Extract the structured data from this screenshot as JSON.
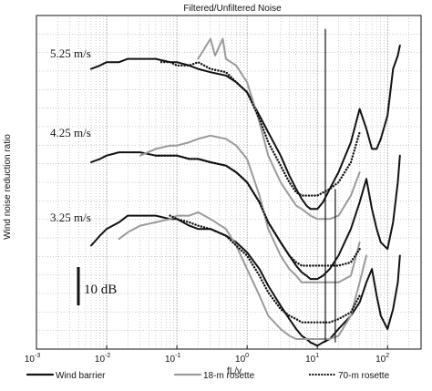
{
  "chart_data": {
    "type": "line",
    "title": "Filtered/Unfiltered Noise",
    "xlabel": "fL/v",
    "ylabel": "Wind noise reduction ratio",
    "xscale": "log",
    "xlim": [
      0.001,
      300
    ],
    "x_ticks": [
      {
        "value": 0.001,
        "base": "10",
        "exp": "-3"
      },
      {
        "value": 0.01,
        "base": "10",
        "exp": "-2"
      },
      {
        "value": 0.1,
        "base": "10",
        "exp": "-1"
      },
      {
        "value": 1,
        "base": "10",
        "exp": "0"
      },
      {
        "value": 10,
        "base": "10",
        "exp": "1"
      },
      {
        "value": 100,
        "base": "10",
        "exp": "2"
      }
    ],
    "ylim": [
      0,
      100
    ],
    "yunits": "relative chart scale, 10 dB ≈ 11 units",
    "grid": true,
    "legend_position": "bottom",
    "scale_bar": {
      "label": "10 dB"
    },
    "groups": [
      {
        "label": "5.25 m/s",
        "series": [
          {
            "name": "Wind barrier",
            "points": [
              [
                0.006,
                84
              ],
              [
                0.008,
                85
              ],
              [
                0.01,
                86
              ],
              [
                0.015,
                86
              ],
              [
                0.02,
                87
              ],
              [
                0.03,
                87
              ],
              [
                0.05,
                87
              ],
              [
                0.08,
                86
              ],
              [
                0.1,
                86
              ],
              [
                0.15,
                85
              ],
              [
                0.2,
                84
              ],
              [
                0.3,
                83
              ],
              [
                0.5,
                82
              ],
              [
                0.7,
                80
              ],
              [
                1,
                77
              ],
              [
                1.5,
                70
              ],
              [
                2,
                65
              ],
              [
                3,
                58
              ],
              [
                4,
                52
              ],
              [
                5,
                48
              ],
              [
                6,
                45
              ],
              [
                7,
                43
              ],
              [
                8,
                42
              ],
              [
                10,
                42
              ],
              [
                12,
                44
              ],
              [
                15,
                48
              ],
              [
                20,
                53
              ],
              [
                30,
                62
              ],
              [
                40,
                72
              ],
              [
                50,
                66
              ],
              [
                60,
                60
              ],
              [
                70,
                60
              ],
              [
                80,
                63
              ],
              [
                100,
                70
              ],
              [
                120,
                84
              ],
              [
                140,
                88
              ],
              [
                150,
                91
              ]
            ]
          },
          {
            "name": "18-m rosette",
            "points": [
              [
                0.2,
                87
              ],
              [
                0.3,
                93
              ],
              [
                0.35,
                88
              ],
              [
                0.45,
                93
              ],
              [
                0.5,
                87
              ],
              [
                0.7,
                85
              ],
              [
                1,
                80
              ],
              [
                1.5,
                68
              ],
              [
                2,
                58
              ],
              [
                3,
                50
              ],
              [
                4,
                46
              ],
              [
                5,
                43
              ],
              [
                6,
                42
              ],
              [
                8,
                40
              ],
              [
                10,
                39
              ],
              [
                15,
                39
              ],
              [
                20,
                40
              ],
              [
                30,
                46
              ],
              [
                40,
                53
              ]
            ]
          },
          {
            "name": "70-m rosette",
            "points": [
              [
                0.06,
                86
              ],
              [
                0.08,
                86
              ],
              [
                0.1,
                85
              ],
              [
                0.15,
                85
              ],
              [
                0.2,
                86
              ],
              [
                0.3,
                84
              ],
              [
                0.5,
                83
              ],
              [
                0.7,
                80
              ],
              [
                1,
                77
              ],
              [
                1.5,
                69
              ],
              [
                2,
                62
              ],
              [
                3,
                55
              ],
              [
                4,
                50
              ],
              [
                5,
                47
              ],
              [
                6,
                46
              ],
              [
                8,
                46
              ],
              [
                10,
                46
              ],
              [
                15,
                48
              ],
              [
                20,
                50
              ],
              [
                30,
                56
              ],
              [
                40,
                65
              ]
            ]
          }
        ]
      },
      {
        "label": "4.25 m/s",
        "series": [
          {
            "name": "Wind barrier",
            "points": [
              [
                0.006,
                56
              ],
              [
                0.008,
                57
              ],
              [
                0.01,
                58
              ],
              [
                0.015,
                59
              ],
              [
                0.02,
                59
              ],
              [
                0.03,
                59
              ],
              [
                0.05,
                58
              ],
              [
                0.08,
                58
              ],
              [
                0.1,
                58
              ],
              [
                0.15,
                57
              ],
              [
                0.2,
                57
              ],
              [
                0.3,
                56
              ],
              [
                0.5,
                55
              ],
              [
                0.7,
                53
              ],
              [
                1,
                50
              ],
              [
                1.5,
                44
              ],
              [
                2,
                38
              ],
              [
                3,
                32
              ],
              [
                4,
                28
              ],
              [
                5,
                25
              ],
              [
                6,
                23
              ],
              [
                7,
                22
              ],
              [
                8,
                21
              ],
              [
                10,
                21
              ],
              [
                12,
                22
              ],
              [
                15,
                24
              ],
              [
                20,
                28
              ],
              [
                30,
                36
              ],
              [
                40,
                44
              ],
              [
                50,
                51
              ],
              [
                60,
                42
              ],
              [
                70,
                36
              ],
              [
                80,
                32
              ],
              [
                100,
                30
              ],
              [
                120,
                38
              ],
              [
                140,
                50
              ],
              [
                150,
                58
              ]
            ]
          },
          {
            "name": "18-m rosette",
            "points": [
              [
                0.03,
                58
              ],
              [
                0.05,
                60
              ],
              [
                0.08,
                61
              ],
              [
                0.1,
                61
              ],
              [
                0.15,
                62
              ],
              [
                0.2,
                63
              ],
              [
                0.3,
                64
              ],
              [
                0.5,
                63
              ],
              [
                0.7,
                61
              ],
              [
                1,
                57
              ],
              [
                1.5,
                46
              ],
              [
                2,
                36
              ],
              [
                3,
                28
              ],
              [
                4,
                24
              ],
              [
                5,
                22
              ],
              [
                6,
                20
              ],
              [
                8,
                20
              ],
              [
                10,
                20
              ],
              [
                15,
                20
              ],
              [
                20,
                20
              ],
              [
                30,
                22
              ],
              [
                40,
                32
              ]
            ]
          },
          {
            "name": "70-m rosette",
            "points": [
              [
                0.05,
                58
              ],
              [
                0.08,
                58
              ],
              [
                0.1,
                58
              ],
              [
                0.15,
                57
              ],
              [
                0.2,
                57
              ],
              [
                0.3,
                56
              ],
              [
                0.5,
                55
              ],
              [
                0.7,
                53
              ],
              [
                1,
                50
              ],
              [
                1.5,
                44
              ],
              [
                2,
                38
              ],
              [
                3,
                32
              ],
              [
                4,
                28
              ],
              [
                5,
                26
              ],
              [
                6,
                25
              ],
              [
                8,
                25
              ],
              [
                10,
                25
              ],
              [
                15,
                25
              ],
              [
                20,
                25
              ],
              [
                30,
                26
              ],
              [
                40,
                30
              ]
            ]
          }
        ]
      },
      {
        "label": "3.25 m/s",
        "series": [
          {
            "name": "Wind barrier",
            "points": [
              [
                0.006,
                31
              ],
              [
                0.008,
                34
              ],
              [
                0.01,
                36
              ],
              [
                0.015,
                38
              ],
              [
                0.02,
                40
              ],
              [
                0.03,
                40
              ],
              [
                0.05,
                40
              ],
              [
                0.08,
                39
              ],
              [
                0.1,
                39
              ],
              [
                0.15,
                37
              ],
              [
                0.2,
                36
              ],
              [
                0.3,
                36
              ],
              [
                0.5,
                34
              ],
              [
                0.7,
                32
              ],
              [
                1,
                29
              ],
              [
                1.5,
                24
              ],
              [
                2,
                19
              ],
              [
                3,
                13
              ],
              [
                4,
                9
              ],
              [
                5,
                6
              ],
              [
                6,
                4
              ],
              [
                7,
                3
              ],
              [
                8,
                2
              ],
              [
                10,
                1
              ],
              [
                12,
                2
              ],
              [
                15,
                3
              ],
              [
                20,
                6
              ],
              [
                30,
                10
              ],
              [
                40,
                14
              ],
              [
                50,
                20
              ],
              [
                60,
                24
              ],
              [
                70,
                16
              ],
              [
                80,
                10
              ],
              [
                100,
                6
              ],
              [
                120,
                12
              ],
              [
                140,
                20
              ],
              [
                150,
                28
              ]
            ]
          },
          {
            "name": "18-m rosette",
            "points": [
              [
                0.015,
                33
              ],
              [
                0.02,
                35
              ],
              [
                0.03,
                37
              ],
              [
                0.05,
                38
              ],
              [
                0.08,
                39
              ],
              [
                0.1,
                40
              ],
              [
                0.15,
                40
              ],
              [
                0.2,
                41
              ],
              [
                0.3,
                39
              ],
              [
                0.5,
                36
              ],
              [
                0.7,
                31
              ],
              [
                1,
                24
              ],
              [
                1.5,
                16
              ],
              [
                2,
                10
              ],
              [
                3,
                6
              ],
              [
                4,
                4
              ],
              [
                5,
                3
              ],
              [
                6,
                3
              ],
              [
                8,
                3
              ],
              [
                10,
                3
              ],
              [
                15,
                3
              ],
              [
                20,
                4
              ],
              [
                30,
                10
              ],
              [
                40,
                20
              ],
              [
                50,
                28
              ]
            ]
          },
          {
            "name": "70-m rosette",
            "points": [
              [
                0.08,
                40
              ],
              [
                0.1,
                39
              ],
              [
                0.15,
                38
              ],
              [
                0.2,
                37
              ],
              [
                0.3,
                36
              ],
              [
                0.5,
                34
              ],
              [
                0.7,
                31
              ],
              [
                1,
                28
              ],
              [
                1.5,
                22
              ],
              [
                2,
                17
              ],
              [
                3,
                12
              ],
              [
                4,
                10
              ],
              [
                5,
                9
              ],
              [
                6,
                8
              ],
              [
                8,
                8
              ],
              [
                10,
                8
              ],
              [
                15,
                8
              ],
              [
                20,
                9
              ],
              [
                30,
                11
              ],
              [
                40,
                16
              ]
            ]
          }
        ]
      }
    ],
    "legend": [
      {
        "label": "Wind barrier",
        "color": "#111111",
        "style": "solid"
      },
      {
        "label": "18-m rosette",
        "color": "#9a9a9a",
        "style": "solid"
      },
      {
        "label": "70-m rosette",
        "color": "#111111",
        "style": "dotted"
      }
    ],
    "spike_lines": [
      {
        "x": 13,
        "y_from": 2,
        "y_to": 96
      },
      {
        "x": 18,
        "y_from": 2,
        "y_to": 48
      }
    ]
  }
}
